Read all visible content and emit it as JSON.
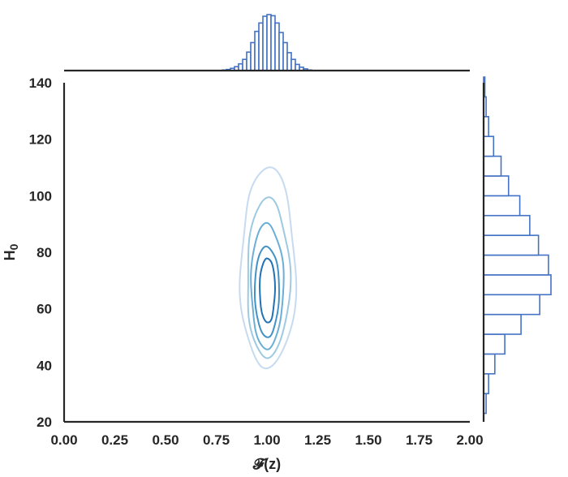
{
  "chart_data": {
    "type": "kde-joint",
    "xlabel": "𝓕(z)",
    "ylabel": "H",
    "ylabel_sub": "0",
    "xlim": [
      0,
      2
    ],
    "ylim": [
      20,
      140
    ],
    "x_ticks": [
      "0.00",
      "0.25",
      "0.50",
      "0.75",
      "1.00",
      "1.25",
      "1.50",
      "1.75",
      "2.00"
    ],
    "y_ticks": [
      "20",
      "40",
      "60",
      "80",
      "100",
      "120",
      "140"
    ],
    "joint_kde": {
      "center": {
        "x": 1.0,
        "y": 68
      },
      "levels": [
        {
          "x_min": 0.87,
          "x_max": 1.14,
          "y_min": 39,
          "y_max": 110,
          "color": "#c6dbef"
        },
        {
          "x_min": 0.9,
          "x_max": 1.11,
          "y_min": 43,
          "y_max": 99,
          "color": "#9ecae1"
        },
        {
          "x_min": 0.92,
          "x_max": 1.08,
          "y_min": 46,
          "y_max": 90,
          "color": "#6baed6"
        },
        {
          "x_min": 0.94,
          "x_max": 1.06,
          "y_min": 50,
          "y_max": 82,
          "color": "#4292c6"
        },
        {
          "x_min": 0.965,
          "x_max": 1.04,
          "y_min": 55,
          "y_max": 78,
          "color": "#2171b5"
        }
      ]
    },
    "x_marginal": {
      "bin_start": 0.78,
      "bin_width": 0.02,
      "counts": [
        1,
        2,
        4,
        7,
        12,
        20,
        33,
        50,
        70,
        85,
        97,
        100,
        98,
        85,
        68,
        50,
        32,
        20,
        11,
        6,
        3,
        1
      ]
    },
    "y_marginal": {
      "bin_start": 23,
      "bin_width": 7,
      "counts": [
        2,
        4,
        9,
        17,
        30,
        45,
        54,
        52,
        44,
        37,
        29,
        20,
        14,
        8,
        4,
        2,
        1
      ]
    },
    "colors": {
      "hist": "#4472c4",
      "axis": "#262626"
    }
  }
}
